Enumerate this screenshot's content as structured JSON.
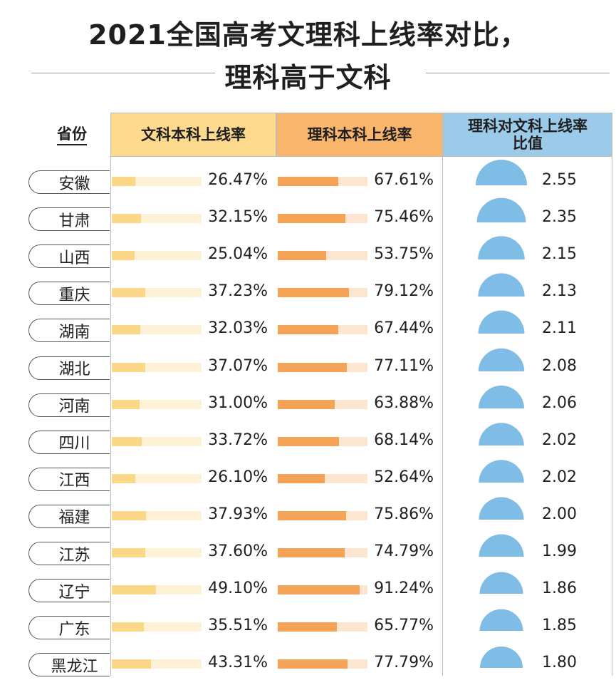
{
  "title": {
    "line1": "2021全国高考文理科上线率对比，",
    "line2": "理科高于文科"
  },
  "colors": {
    "arts_header": "#fcd98c",
    "science_header": "#f9b56c",
    "ratio_header": "#9ccbea",
    "arts_bar": "#fbd888",
    "science_bar": "#f5a356",
    "dome": "#7fbde6"
  },
  "chart_data": {
    "type": "table",
    "title": "2021全国高考文理科上线率对比，理科高于文科",
    "columns": [
      "省份",
      "文科本科上线率",
      "理科本科上线率",
      "理科对文科上线率比值"
    ],
    "column_labels": {
      "province": "省份",
      "arts": "文科本科上线率",
      "science": "理科本科上线率",
      "ratio_line1": "理科对文科上线率",
      "ratio_line2": "比值"
    },
    "rows": [
      {
        "province": "安徽",
        "arts": 26.47,
        "arts_label": "26.47%",
        "science": 67.61,
        "science_label": "67.61%",
        "ratio": "2.55"
      },
      {
        "province": "甘肃",
        "arts": 32.15,
        "arts_label": "32.15%",
        "science": 75.46,
        "science_label": "75.46%",
        "ratio": "2.35"
      },
      {
        "province": "山西",
        "arts": 25.04,
        "arts_label": "25.04%",
        "science": 53.75,
        "science_label": "53.75%",
        "ratio": "2.15"
      },
      {
        "province": "重庆",
        "arts": 37.23,
        "arts_label": "37.23%",
        "science": 79.12,
        "science_label": "79.12%",
        "ratio": "2.13"
      },
      {
        "province": "湖南",
        "arts": 32.03,
        "arts_label": "32.03%",
        "science": 67.44,
        "science_label": "67.44%",
        "ratio": "2.11"
      },
      {
        "province": "湖北",
        "arts": 37.07,
        "arts_label": "37.07%",
        "science": 77.11,
        "science_label": "77.11%",
        "ratio": "2.08"
      },
      {
        "province": "河南",
        "arts": 31.0,
        "arts_label": "31.00%",
        "science": 63.88,
        "science_label": "63.88%",
        "ratio": "2.06"
      },
      {
        "province": "四川",
        "arts": 33.72,
        "arts_label": "33.72%",
        "science": 68.14,
        "science_label": "68.14%",
        "ratio": "2.02"
      },
      {
        "province": "江西",
        "arts": 26.1,
        "arts_label": "26.10%",
        "science": 52.64,
        "science_label": "52.64%",
        "ratio": "2.02"
      },
      {
        "province": "福建",
        "arts": 37.93,
        "arts_label": "37.93%",
        "science": 75.86,
        "science_label": "75.86%",
        "ratio": "2.00"
      },
      {
        "province": "江苏",
        "arts": 37.6,
        "arts_label": "37.60%",
        "science": 74.79,
        "science_label": "74.79%",
        "ratio": "1.99"
      },
      {
        "province": "辽宁",
        "arts": 49.1,
        "arts_label": "49.10%",
        "science": 91.24,
        "science_label": "91.24%",
        "ratio": "1.86"
      },
      {
        "province": "广东",
        "arts": 35.51,
        "arts_label": "35.51%",
        "science": 65.77,
        "science_label": "65.77%",
        "ratio": "1.85"
      },
      {
        "province": "黑龙江",
        "arts": 43.31,
        "arts_label": "43.31%",
        "science": 77.79,
        "science_label": "77.79%",
        "ratio": "1.80"
      }
    ],
    "bar_max": 100
  }
}
